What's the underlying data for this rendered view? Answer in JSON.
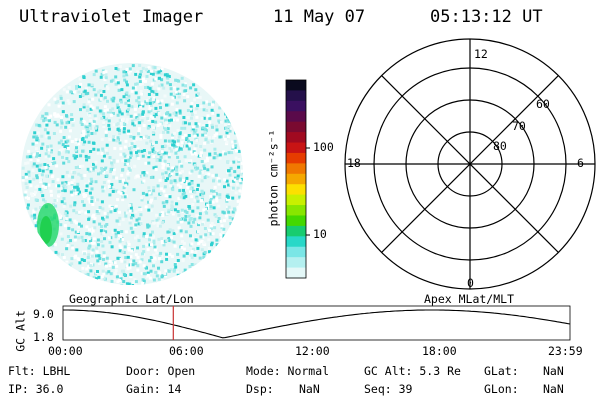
{
  "header": {
    "title": "Ultraviolet Imager",
    "date": "11 May 07",
    "time": "05:13:12 UT"
  },
  "colorbar": {
    "label": "photon cm⁻²s⁻¹",
    "ticks": [
      "100",
      "10"
    ],
    "colors": [
      "#0a0a1e",
      "#24104a",
      "#3a1060",
      "#5a0a4a",
      "#7a0a30",
      "#a00a20",
      "#c81414",
      "#e63c00",
      "#f07800",
      "#f5a800",
      "#fce000",
      "#c8f000",
      "#88e600",
      "#44d800",
      "#18cc70",
      "#28d8c8",
      "#7ae6e6",
      "#b4f0f0",
      "#e4f8f8"
    ]
  },
  "polar": {
    "labels": {
      "top": "12",
      "bottom": "0",
      "left": "18",
      "right": "6"
    },
    "rings": [
      "60",
      "70",
      "80"
    ]
  },
  "timeline": {
    "ylabel": "GC Alt",
    "y_ticks": [
      "9.0",
      "1.8"
    ],
    "left_label": "Geographic Lat/Lon",
    "right_label": "Apex MLat/MLT",
    "x_ticks": [
      "00:00",
      "06:00",
      "12:00",
      "18:00",
      "23:59"
    ],
    "current_time_hours": 5.22,
    "colors": {
      "marker": "#c83232",
      "line": "#000000"
    }
  },
  "info": {
    "row1": {
      "flt": "Flt: LBHL",
      "door": "Door: Open",
      "mode": "Mode: Normal",
      "gcalt": "GC Alt: 5.3 Re",
      "glat_label": "GLat:",
      "glat_value": "NaN"
    },
    "row2": {
      "ip": "IP: 36.0",
      "gain": "Gain: 14",
      "dsp_label": "Dsp:",
      "dsp_value": "NaN",
      "seq": "Seq: 39",
      "glon_label": "GLon:",
      "glon_value": "NaN"
    }
  }
}
